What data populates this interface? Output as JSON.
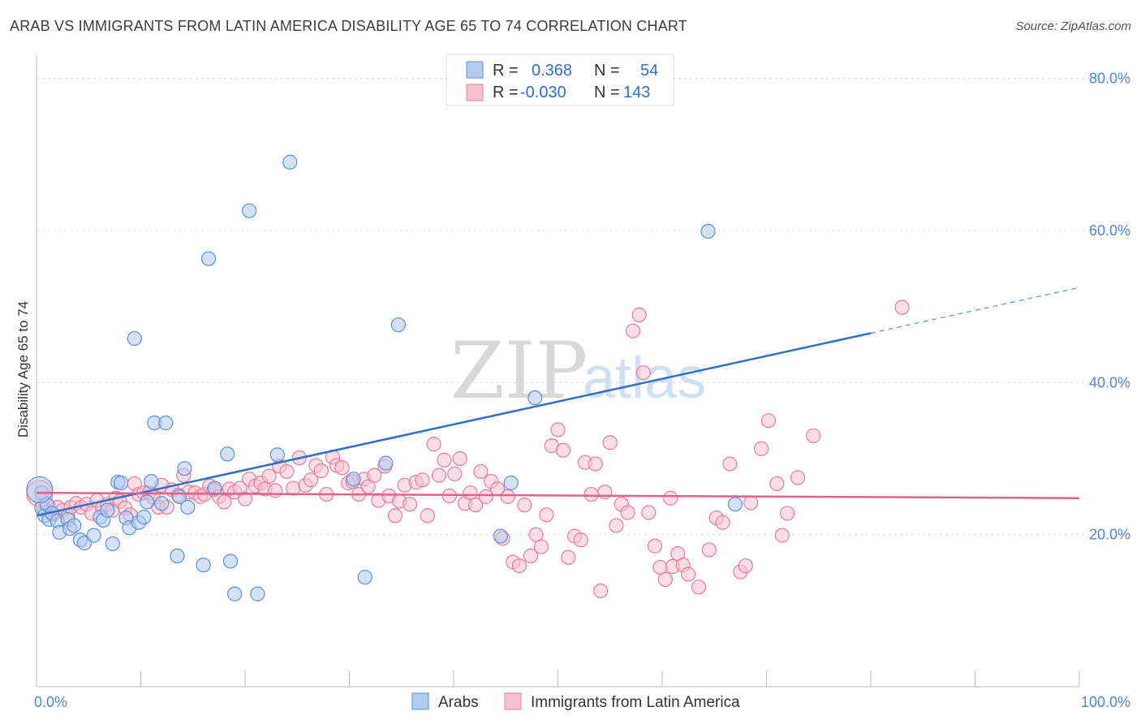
{
  "title": "ARAB VS IMMIGRANTS FROM LATIN AMERICA DISABILITY AGE 65 TO 74 CORRELATION CHART",
  "source": "Source: ZipAtlas.com",
  "watermark": {
    "zip": "ZIP",
    "atlas": "atlas"
  },
  "colors": {
    "arabs": "#5b8fd6",
    "latin": "#e8799c",
    "arabs_fill": "#b3cbef",
    "latin_fill": "#f6c2d2"
  },
  "legend": {
    "r_label": "R =",
    "n_label": "N =",
    "rows": [
      {
        "r": "0.368",
        "n": "54"
      },
      {
        "r": "-0.030",
        "n": "143"
      }
    ]
  },
  "bottom_legend": [
    "Arabs",
    "Immigrants from Latin America"
  ],
  "chart_data": {
    "type": "scatter",
    "title": "ARAB VS IMMIGRANTS FROM LATIN AMERICA DISABILITY AGE 65 TO 74 CORRELATION CHART",
    "xlabel": "",
    "ylabel": "Disability Age 65 to 74",
    "xlim": [
      0,
      100
    ],
    "ylim": [
      0,
      82
    ],
    "x_ticks": [
      "0.0%",
      "100.0%"
    ],
    "y_ticks": [
      {
        "value": 20,
        "label": "20.0%"
      },
      {
        "value": 40,
        "label": "40.0%"
      },
      {
        "value": 60,
        "label": "60.0%"
      },
      {
        "value": 80,
        "label": "80.0%"
      }
    ],
    "grid": true,
    "legend_position": "top-center",
    "series": [
      {
        "name": "Arabs",
        "r": 0.368,
        "n": 54,
        "trend": {
          "x0": 0,
          "y0": 22.5,
          "x1": 80,
          "y1": 46.5,
          "dashed_to_x": 100,
          "dashed_to_y": 52.5
        },
        "points": [
          [
            0.5,
            25.5
          ],
          [
            0.5,
            23.5
          ],
          [
            0.8,
            22.5
          ],
          [
            1.0,
            24.0
          ],
          [
            1.2,
            22.0
          ],
          [
            1.5,
            22.8
          ],
          [
            2.0,
            21.8
          ],
          [
            2.2,
            20.3
          ],
          [
            3.0,
            22.0
          ],
          [
            3.2,
            20.8
          ],
          [
            3.6,
            21.2
          ],
          [
            4.2,
            19.3
          ],
          [
            4.6,
            18.9
          ],
          [
            5.5,
            19.9
          ],
          [
            6.1,
            22.3
          ],
          [
            6.4,
            21.9
          ],
          [
            6.8,
            23.2
          ],
          [
            7.3,
            18.8
          ],
          [
            7.8,
            26.9
          ],
          [
            8.1,
            26.8
          ],
          [
            8.6,
            22.2
          ],
          [
            8.9,
            20.9
          ],
          [
            9.4,
            45.8
          ],
          [
            9.8,
            21.6
          ],
          [
            10.3,
            22.3
          ],
          [
            10.6,
            24.3
          ],
          [
            11.0,
            27.0
          ],
          [
            11.3,
            34.7
          ],
          [
            12.0,
            24.1
          ],
          [
            12.4,
            34.7
          ],
          [
            13.5,
            17.2
          ],
          [
            13.7,
            25.0
          ],
          [
            14.2,
            28.7
          ],
          [
            14.5,
            23.6
          ],
          [
            16.0,
            16.0
          ],
          [
            16.5,
            56.3
          ],
          [
            17.1,
            26.1
          ],
          [
            18.3,
            30.6
          ],
          [
            18.6,
            16.5
          ],
          [
            19.0,
            12.2
          ],
          [
            20.4,
            62.6
          ],
          [
            21.2,
            12.2
          ],
          [
            23.1,
            30.5
          ],
          [
            24.3,
            69.0
          ],
          [
            30.4,
            27.3
          ],
          [
            31.5,
            14.4
          ],
          [
            33.5,
            29.4
          ],
          [
            34.7,
            47.6
          ],
          [
            44.5,
            19.8
          ],
          [
            45.5,
            26.8
          ],
          [
            47.8,
            38.0
          ],
          [
            64.4,
            59.9
          ],
          [
            67.0,
            24.0
          ],
          [
            0.3,
            25.9
          ]
        ]
      },
      {
        "name": "Immigrants from Latin America",
        "r": -0.03,
        "n": 143,
        "trend": {
          "x0": 0,
          "y0": 25.5,
          "x1": 100,
          "y1": 24.8
        },
        "points": [
          [
            0.5,
            24.5
          ],
          [
            0.8,
            23.2
          ],
          [
            1.2,
            23.7
          ],
          [
            1.6,
            22.7
          ],
          [
            2.0,
            23.6
          ],
          [
            2.5,
            23.2
          ],
          [
            3.0,
            22.4
          ],
          [
            3.3,
            23.6
          ],
          [
            3.8,
            24.1
          ],
          [
            4.3,
            23.6
          ],
          [
            4.8,
            24.0
          ],
          [
            5.3,
            22.8
          ],
          [
            5.8,
            24.5
          ],
          [
            6.3,
            23.5
          ],
          [
            6.8,
            24.0
          ],
          [
            7.3,
            23.2
          ],
          [
            7.6,
            24.8
          ],
          [
            8.0,
            24.4
          ],
          [
            8.5,
            23.5
          ],
          [
            9.0,
            22.6
          ],
          [
            9.4,
            26.7
          ],
          [
            9.8,
            25.3
          ],
          [
            10.3,
            25.5
          ],
          [
            10.8,
            25.5
          ],
          [
            11.2,
            24.9
          ],
          [
            11.7,
            23.6
          ],
          [
            12.0,
            26.5
          ],
          [
            12.5,
            23.6
          ],
          [
            13.0,
            25.9
          ],
          [
            13.6,
            25.2
          ],
          [
            14.1,
            27.8
          ],
          [
            14.6,
            25.6
          ],
          [
            15.2,
            25.5
          ],
          [
            15.7,
            25.0
          ],
          [
            16.1,
            25.3
          ],
          [
            16.6,
            26.4
          ],
          [
            17.0,
            25.9
          ],
          [
            17.5,
            25.0
          ],
          [
            18.0,
            24.3
          ],
          [
            18.5,
            26.0
          ],
          [
            19.0,
            25.6
          ],
          [
            19.5,
            26.1
          ],
          [
            20.0,
            24.7
          ],
          [
            20.4,
            27.3
          ],
          [
            21.0,
            26.4
          ],
          [
            21.5,
            26.8
          ],
          [
            21.9,
            26.0
          ],
          [
            22.3,
            27.7
          ],
          [
            22.9,
            25.8
          ],
          [
            23.3,
            29.0
          ],
          [
            24.0,
            28.3
          ],
          [
            24.6,
            26.1
          ],
          [
            25.2,
            30.1
          ],
          [
            25.8,
            26.5
          ],
          [
            26.3,
            27.2
          ],
          [
            26.8,
            29.1
          ],
          [
            27.3,
            28.4
          ],
          [
            27.8,
            25.3
          ],
          [
            28.4,
            30.2
          ],
          [
            28.8,
            29.1
          ],
          [
            29.3,
            28.8
          ],
          [
            29.9,
            26.8
          ],
          [
            30.3,
            27.0
          ],
          [
            30.9,
            25.3
          ],
          [
            31.4,
            27.3
          ],
          [
            31.8,
            26.3
          ],
          [
            32.4,
            27.8
          ],
          [
            32.8,
            24.5
          ],
          [
            33.4,
            29.0
          ],
          [
            33.8,
            25.1
          ],
          [
            34.4,
            22.5
          ],
          [
            34.8,
            24.4
          ],
          [
            35.3,
            26.5
          ],
          [
            35.8,
            24.0
          ],
          [
            36.4,
            26.9
          ],
          [
            37.0,
            27.2
          ],
          [
            37.5,
            22.5
          ],
          [
            38.1,
            31.9
          ],
          [
            38.6,
            27.8
          ],
          [
            39.1,
            29.8
          ],
          [
            39.6,
            25.1
          ],
          [
            40.1,
            28.0
          ],
          [
            40.6,
            30.0
          ],
          [
            41.1,
            24.1
          ],
          [
            41.6,
            25.5
          ],
          [
            42.1,
            23.9
          ],
          [
            42.6,
            28.3
          ],
          [
            43.1,
            25.0
          ],
          [
            43.6,
            27.0
          ],
          [
            44.2,
            26.0
          ],
          [
            44.7,
            19.5
          ],
          [
            45.2,
            25.0
          ],
          [
            45.7,
            16.4
          ],
          [
            46.3,
            15.9
          ],
          [
            46.8,
            23.9
          ],
          [
            47.4,
            17.2
          ],
          [
            47.9,
            20.0
          ],
          [
            48.4,
            18.4
          ],
          [
            48.9,
            22.6
          ],
          [
            49.4,
            31.7
          ],
          [
            50.0,
            33.8
          ],
          [
            50.5,
            31.1
          ],
          [
            51.0,
            17.0
          ],
          [
            51.6,
            19.8
          ],
          [
            52.2,
            19.3
          ],
          [
            52.6,
            29.5
          ],
          [
            53.2,
            25.3
          ],
          [
            53.6,
            29.3
          ],
          [
            54.1,
            12.6
          ],
          [
            54.5,
            25.6
          ],
          [
            55.0,
            32.1
          ],
          [
            55.6,
            21.2
          ],
          [
            56.1,
            24.0
          ],
          [
            56.7,
            22.9
          ],
          [
            57.2,
            46.8
          ],
          [
            57.8,
            48.9
          ],
          [
            58.2,
            41.3
          ],
          [
            58.7,
            22.9
          ],
          [
            59.3,
            18.5
          ],
          [
            59.8,
            15.7
          ],
          [
            60.3,
            14.1
          ],
          [
            61.0,
            15.8
          ],
          [
            61.5,
            17.5
          ],
          [
            62.0,
            16.0
          ],
          [
            62.5,
            14.8
          ],
          [
            63.5,
            13.1
          ],
          [
            64.5,
            18.0
          ],
          [
            65.2,
            22.2
          ],
          [
            65.8,
            21.6
          ],
          [
            66.5,
            29.3
          ],
          [
            67.5,
            15.1
          ],
          [
            68.0,
            15.9
          ],
          [
            68.5,
            24.2
          ],
          [
            69.5,
            31.3
          ],
          [
            70.2,
            35.0
          ],
          [
            71.0,
            26.7
          ],
          [
            71.5,
            19.9
          ],
          [
            72.0,
            22.8
          ],
          [
            73.0,
            27.5
          ],
          [
            74.5,
            33.0
          ],
          [
            83.0,
            49.9
          ],
          [
            60.8,
            24.8
          ],
          [
            0.3,
            25.4
          ]
        ]
      }
    ]
  }
}
